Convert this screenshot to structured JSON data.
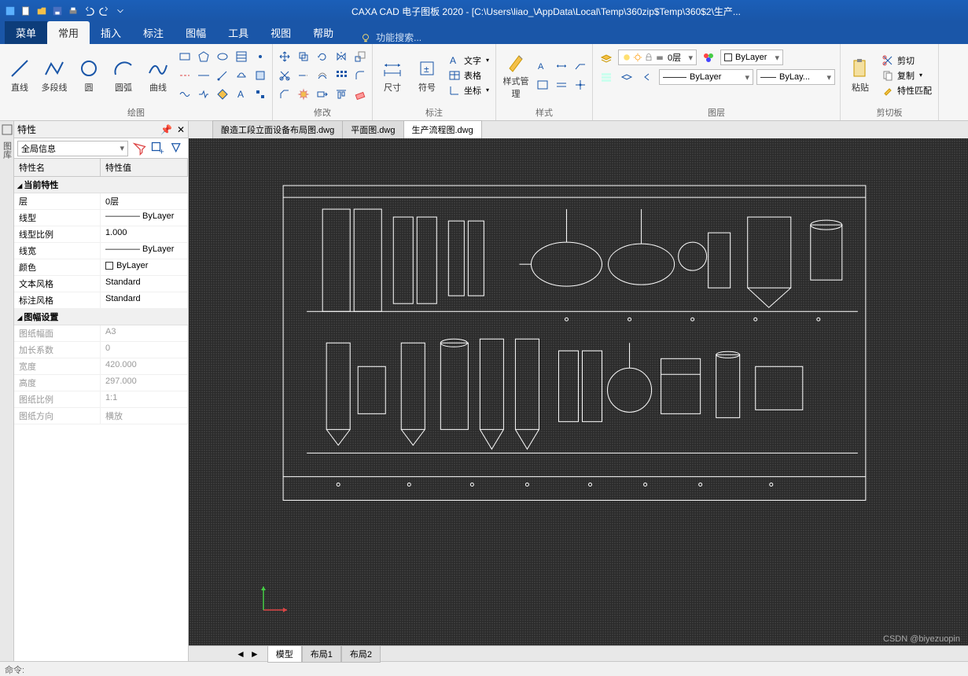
{
  "app": {
    "title": "CAXA CAD 电子图板 2020 - [C:\\Users\\liao_\\AppData\\Local\\Temp\\360zip$Temp\\360$2\\生产..."
  },
  "menu": {
    "file": "菜单",
    "tabs": [
      "常用",
      "插入",
      "标注",
      "图幅",
      "工具",
      "视图",
      "帮助"
    ],
    "active_index": 0,
    "search_placeholder": "功能搜索..."
  },
  "ribbon": {
    "groups": {
      "draw": {
        "label": "绘图",
        "big": [
          {
            "name": "line",
            "label": "直线"
          },
          {
            "name": "polyline",
            "label": "多段线"
          },
          {
            "name": "circle",
            "label": "圆"
          },
          {
            "name": "arc",
            "label": "圆弧"
          },
          {
            "name": "spline",
            "label": "曲线"
          }
        ]
      },
      "modify": {
        "label": "修改"
      },
      "dim": {
        "label": "标注",
        "big": [
          {
            "name": "dimension",
            "label": "尺寸"
          },
          {
            "name": "symbol",
            "label": "符号"
          }
        ],
        "side": [
          {
            "name": "text",
            "label": "文字"
          },
          {
            "name": "table",
            "label": "表格"
          },
          {
            "name": "coord",
            "label": "坐标"
          }
        ]
      },
      "style": {
        "label": "样式",
        "big": [
          {
            "name": "stylemgr",
            "label": "样式管理"
          }
        ]
      },
      "layer": {
        "label": "图层",
        "layer_value": "0层",
        "linetype_value": "ByLayer",
        "color_value": "ByLayer",
        "icons": [
          "bulb",
          "sun",
          "lock",
          "print"
        ]
      },
      "clip": {
        "label": "剪切板",
        "big": [
          {
            "name": "paste",
            "label": "粘贴"
          }
        ],
        "side": [
          {
            "name": "cut",
            "label": "剪切"
          },
          {
            "name": "copy",
            "label": "复制"
          },
          {
            "name": "matchprop",
            "label": "特性匹配"
          }
        ]
      }
    }
  },
  "properties": {
    "title": "特性",
    "selector": "全局信息",
    "header": {
      "name": "特性名",
      "value": "特性值"
    },
    "cats": [
      {
        "title": "当前特性",
        "rows": [
          {
            "k": "层",
            "v": "0层"
          },
          {
            "k": "线型",
            "v": "———— ByLayer"
          },
          {
            "k": "线型比例",
            "v": "1.000"
          },
          {
            "k": "线宽",
            "v": "———— ByLayer"
          },
          {
            "k": "颜色",
            "v": "ByLayer",
            "swatch": true
          },
          {
            "k": "文本风格",
            "v": "Standard"
          },
          {
            "k": "标注风格",
            "v": "Standard"
          }
        ]
      },
      {
        "title": "图幅设置",
        "disabled": true,
        "rows": [
          {
            "k": "图纸幅面",
            "v": "A3"
          },
          {
            "k": "加长系数",
            "v": "0"
          },
          {
            "k": "宽度",
            "v": "420.000"
          },
          {
            "k": "高度",
            "v": "297.000"
          },
          {
            "k": "图纸比例",
            "v": "1:1"
          },
          {
            "k": "图纸方向",
            "v": "横放"
          }
        ]
      }
    ]
  },
  "docs": {
    "tabs": [
      "酿造工段立面设备布局图.dwg",
      "平面图.dwg",
      "生产流程图.dwg"
    ],
    "active_index": 2
  },
  "layouts": {
    "tabs": [
      "模型",
      "布局1",
      "布局2"
    ],
    "active_index": 0
  },
  "status": "命令:",
  "watermark": "CSDN @biyezuopin",
  "colors": {
    "accent": "#1a56a8",
    "canvas": "#3a3a3a",
    "stroke": "#ffffff",
    "handle": "#5be0e0"
  }
}
